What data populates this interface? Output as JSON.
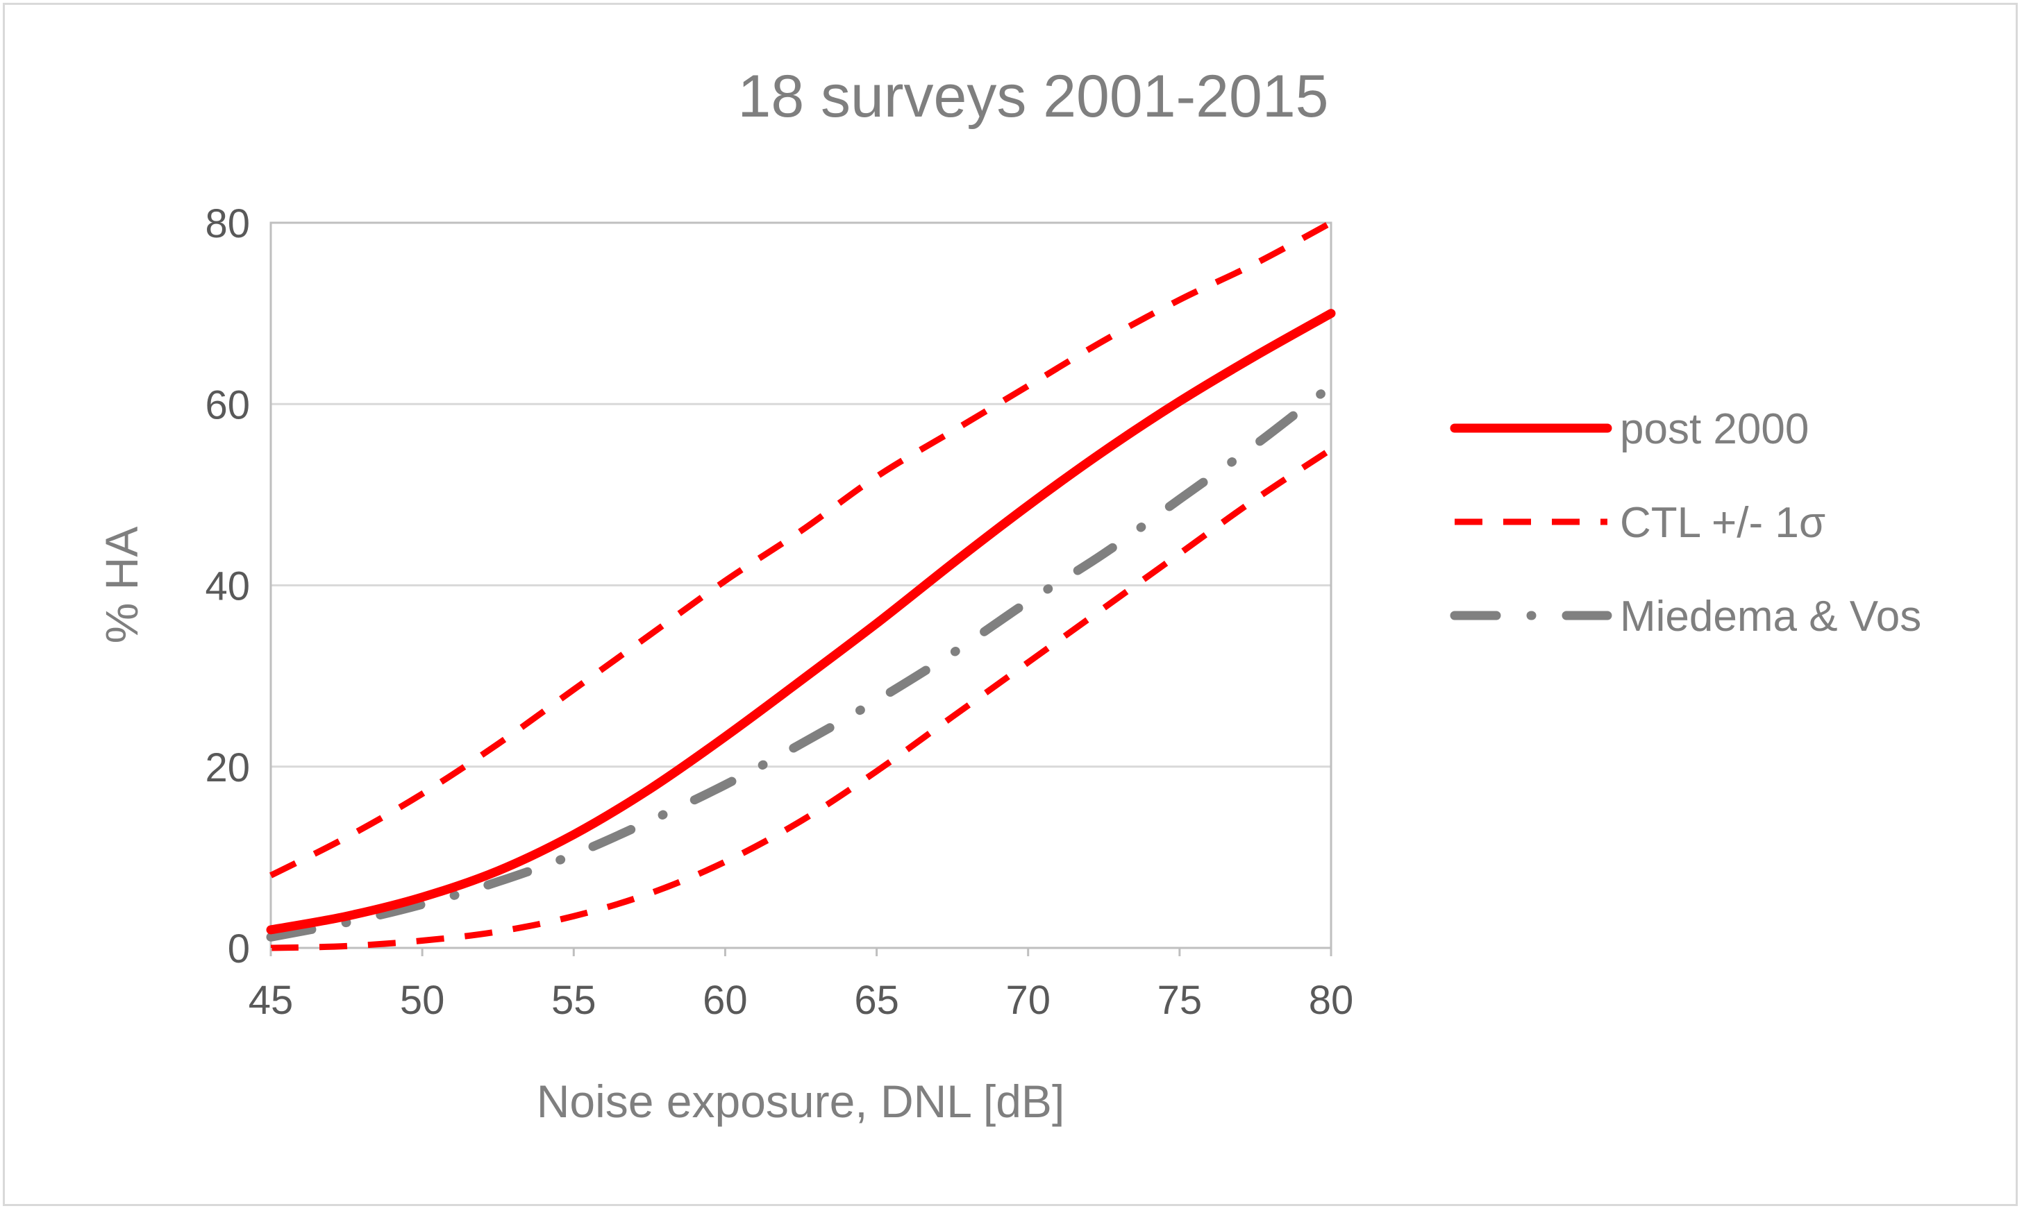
{
  "chart_data": {
    "type": "line",
    "title": "18 surveys 2001-2015",
    "xlabel": "Noise exposure, DNL [dB]",
    "ylabel": "% HA",
    "xlim": [
      45,
      80
    ],
    "ylim": [
      0,
      80
    ],
    "xticks": [
      45,
      50,
      55,
      60,
      65,
      70,
      75,
      80
    ],
    "yticks": [
      0,
      20,
      40,
      60,
      80
    ],
    "xtick_labels": [
      "45",
      "50",
      "55",
      "60",
      "65",
      "70",
      "75",
      "80"
    ],
    "ytick_labels": [
      "0",
      "20",
      "40",
      "60",
      "80"
    ],
    "grid": {
      "horizontal": true,
      "vertical": false
    },
    "legend_position": "right",
    "x": [
      45,
      47.5,
      50,
      52.5,
      55,
      57.5,
      60,
      62.5,
      65,
      67.5,
      70,
      72.5,
      75,
      77.5,
      80
    ],
    "series": [
      {
        "name": "post 2000",
        "style": "solid",
        "color": "#ff0000",
        "values": [
          2,
          3.5,
          5.6,
          8.5,
          12.5,
          17.5,
          23.3,
          29.5,
          35.8,
          42.4,
          48.8,
          54.8,
          60.3,
          65.3,
          70
        ]
      },
      {
        "name": "CTL +/- 1σ",
        "style": "dashed",
        "color": "#ff0000",
        "values": [
          8,
          12.2,
          17,
          22.5,
          28.5,
          34.5,
          40.5,
          46,
          52,
          57,
          62,
          67,
          71.5,
          75.5,
          80
        ]
      },
      {
        "name": "",
        "style": "dashed",
        "color": "#ff0000",
        "values": [
          0,
          0.2,
          0.8,
          1.8,
          3.5,
          6,
          9.5,
          14,
          19.5,
          25.5,
          31.5,
          37.5,
          43.5,
          49.5,
          55
        ]
      },
      {
        "name": "Miedema & Vos",
        "style": "dashdot",
        "color": "#808080",
        "values": [
          1.2,
          2.8,
          4.8,
          7.3,
          10.3,
          14,
          18,
          22.5,
          27.3,
          32.5,
          38.2,
          43.5,
          49.5,
          55.5,
          62
        ]
      }
    ]
  }
}
